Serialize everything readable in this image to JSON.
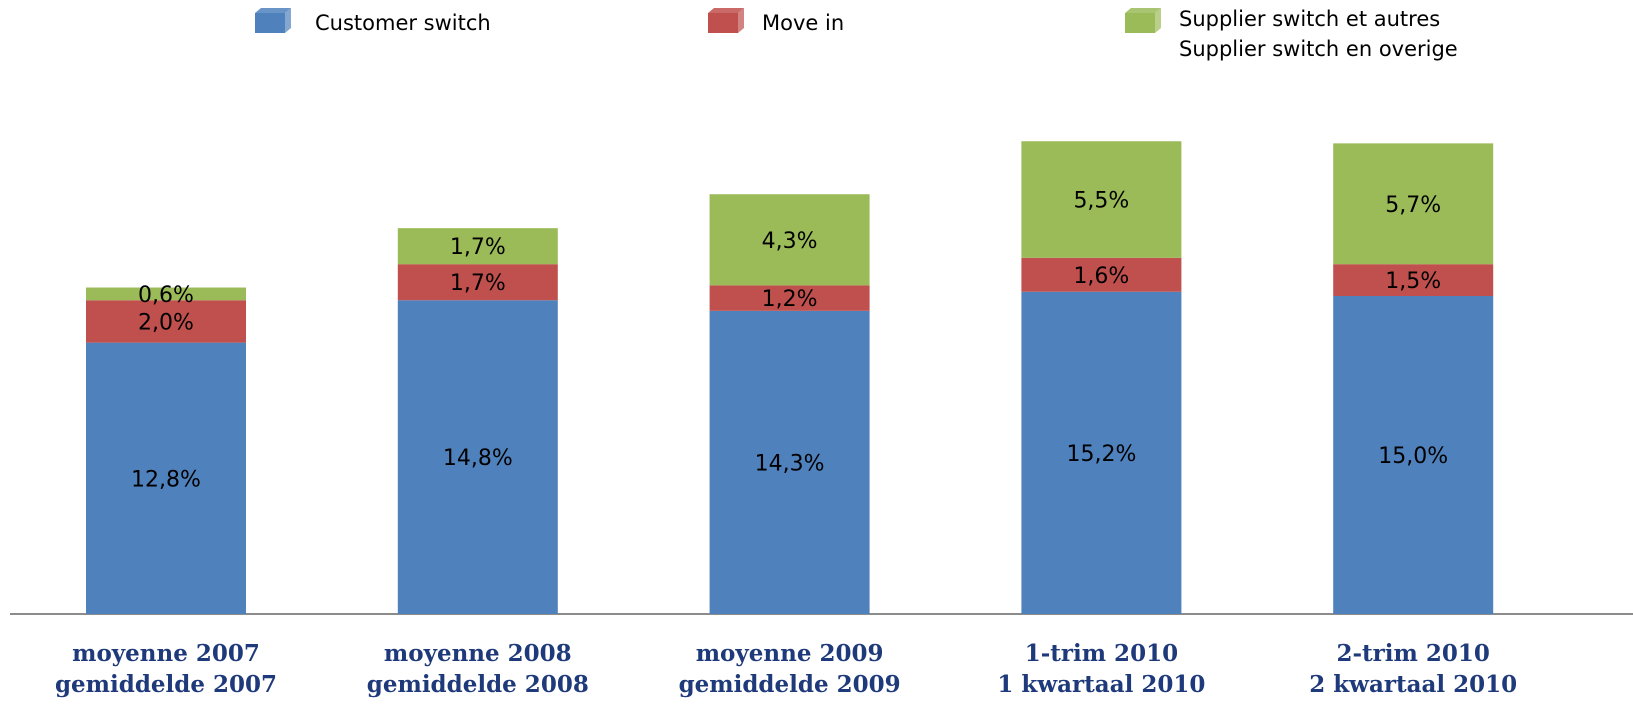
{
  "chart_data": {
    "type": "stacked_bar",
    "categories": [
      [
        "moyenne 2007",
        "gemiddelde 2007"
      ],
      [
        "moyenne 2008",
        "gemiddelde 2008"
      ],
      [
        "moyenne 2009",
        "gemiddelde 2009"
      ],
      [
        "1-trim 2010",
        "1 kwartaal 2010"
      ],
      [
        "2-trim 2010",
        "2 kwartaal 2010"
      ]
    ],
    "series": [
      {
        "name": "Customer switch",
        "color": "#4f81bd",
        "values": [
          12.8,
          14.8,
          14.3,
          15.2,
          15.0
        ],
        "value_labels": [
          "12,8%",
          "14,8%",
          "14,3%",
          "15,2%",
          "15,0%"
        ]
      },
      {
        "name": "Move in",
        "color": "#c0504d",
        "values": [
          2.0,
          1.7,
          1.2,
          1.6,
          1.5
        ],
        "value_labels": [
          "2,0%",
          "1,7%",
          "1,2%",
          "1,6%",
          "1,5%"
        ]
      },
      {
        "name": "Supplier switch et autres\nSupplier switch en overige",
        "color": "#9bbb59",
        "values": [
          0.6,
          1.7,
          4.3,
          5.5,
          5.7
        ],
        "value_labels": [
          "0,6%",
          "1,7%",
          "4,3%",
          "5,5%",
          "5,7%"
        ]
      }
    ]
  }
}
